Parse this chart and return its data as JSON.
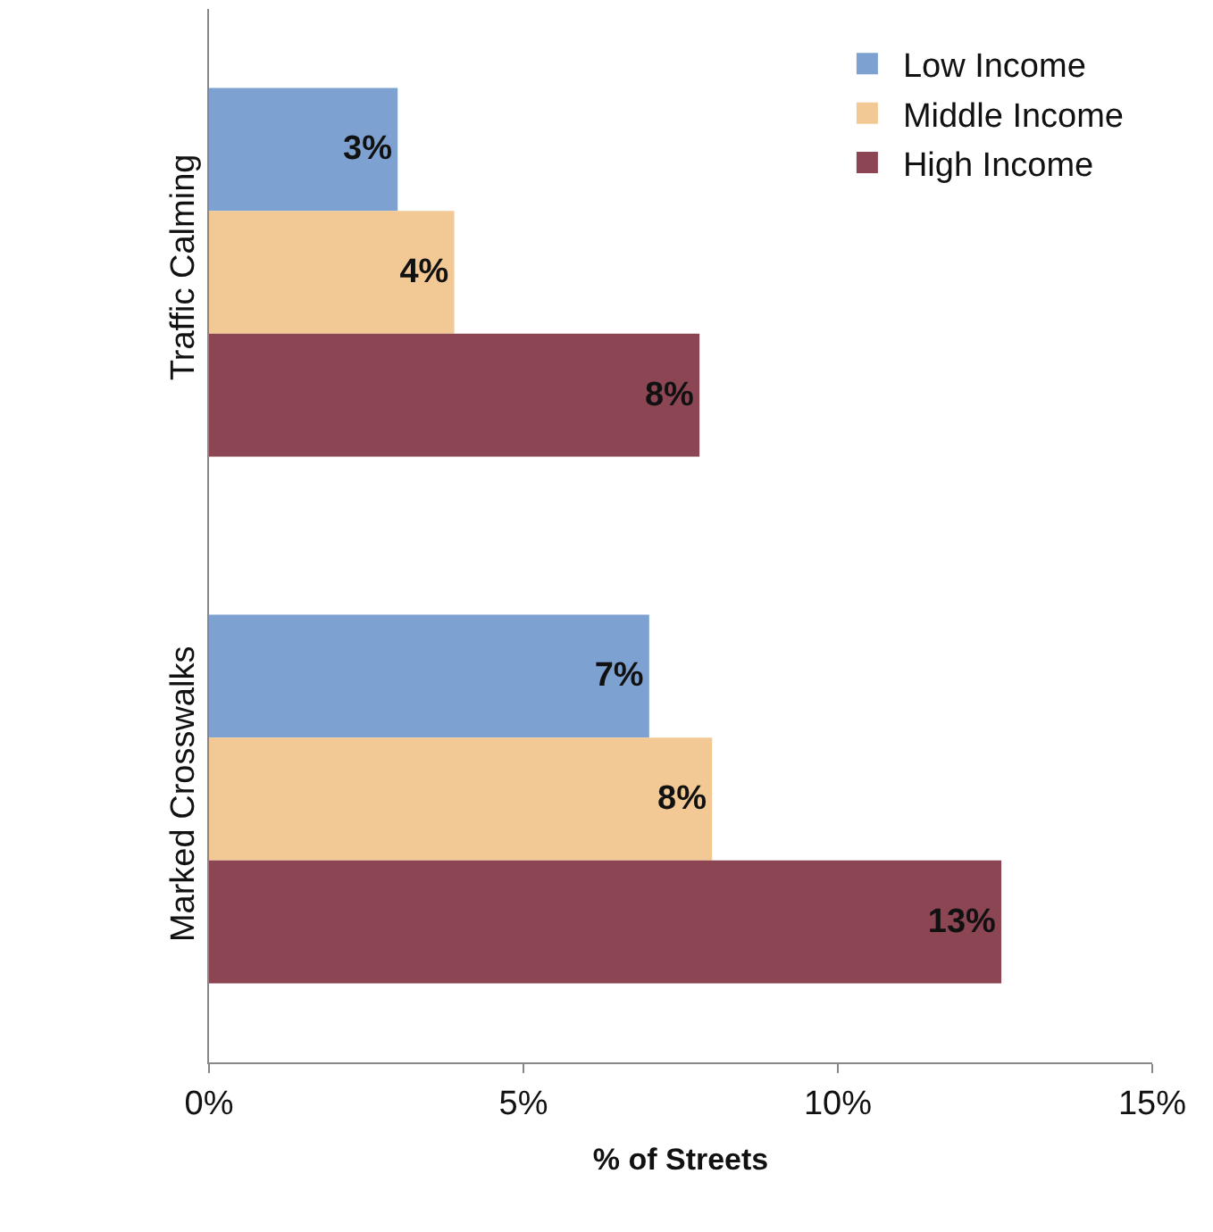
{
  "chart_data": {
    "type": "bar",
    "orientation": "horizontal",
    "xlabel": "% of Streets",
    "categories": [
      "Traffic Calming",
      "Marked Crosswalks"
    ],
    "series": [
      {
        "name": "Low Income",
        "color": "#7da2d1",
        "values": [
          3.0,
          7.0
        ],
        "value_labels": [
          "3%",
          "7%"
        ]
      },
      {
        "name": "Middle Income",
        "color": "#f2c894",
        "values": [
          3.9,
          8.0
        ],
        "value_labels": [
          "4%",
          "8%"
        ]
      },
      {
        "name": "High Income",
        "color": "#8b4553",
        "values": [
          7.8,
          12.6
        ],
        "value_labels": [
          "8%",
          "13%"
        ]
      }
    ],
    "xlim": [
      0,
      15
    ],
    "xticks": [
      {
        "value": 0,
        "label": "0%"
      },
      {
        "value": 5,
        "label": "5%"
      },
      {
        "value": 10,
        "label": "10%"
      },
      {
        "value": 15,
        "label": "15%"
      }
    ],
    "legend": "top right"
  }
}
